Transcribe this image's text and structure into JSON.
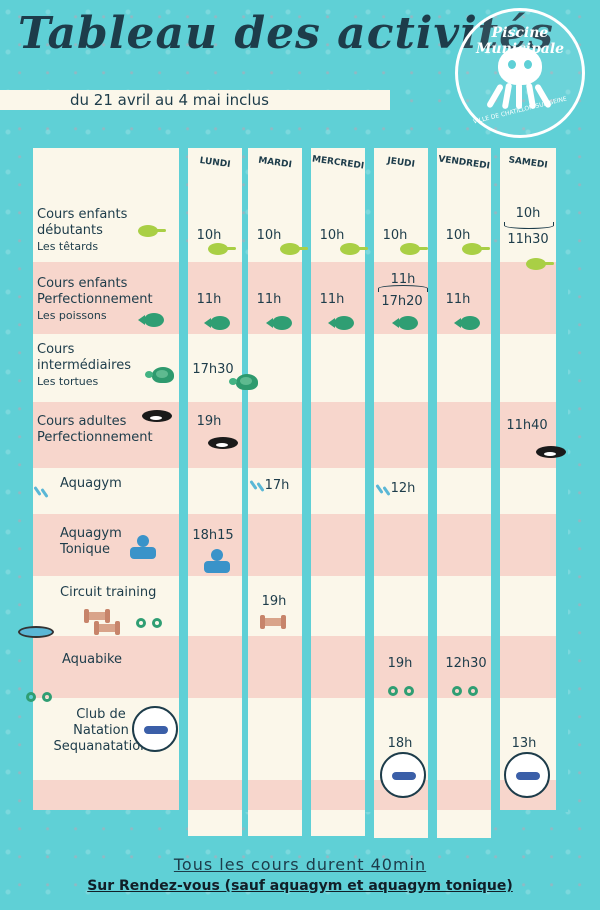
{
  "title": "Tableau des activités",
  "date_range": "du 21 avril au 4 mai inclus",
  "logo": {
    "name": "Piscine Municipale",
    "city": "VILLE DE CHATILLON-SUR-SEINE"
  },
  "days": [
    "LUNDI",
    "MARDI",
    "MERCREDI",
    "JEUDI",
    "VENDREDI",
    "SAMEDI"
  ],
  "activities": [
    {
      "line1": "Cours enfants",
      "line2": "débutants",
      "sub": "Les têtards"
    },
    {
      "line1": "Cours enfants",
      "line2": "Perfectionnement",
      "sub": "Les poissons"
    },
    {
      "line1": "Cours",
      "line2": "intermédiaires",
      "sub": "Les tortues"
    },
    {
      "line1": "Cours adultes",
      "line2": "Perfectionnement"
    },
    {
      "line1": "Aquagym"
    },
    {
      "line1": "Aquagym",
      "line2": "Tonique"
    },
    {
      "line1": "Circuit training"
    },
    {
      "line1": "Aquabike"
    },
    {
      "line1": "Club de",
      "line2": "Natation",
      "line3": "Sequanatation"
    }
  ],
  "times": {
    "r1": {
      "lundi": "10h",
      "mardi": "10h",
      "mercredi": "10h",
      "jeudi": "10h",
      "vendredi": "10h",
      "samedi_a": "10h",
      "samedi_b": "11h30"
    },
    "r2": {
      "lundi": "11h",
      "mardi": "11h",
      "mercredi": "11h",
      "jeudi_a": "11h",
      "jeudi_b": "17h20",
      "vendredi": "11h"
    },
    "r3": {
      "lundi": "17h30"
    },
    "r4": {
      "lundi": "19h",
      "samedi": "11h40"
    },
    "r5": {
      "mardi": "17h",
      "jeudi": "12h"
    },
    "r6": {
      "lundi": "18h15"
    },
    "r7": {
      "mardi": "19h"
    },
    "r8": {
      "jeudi": "19h",
      "vendredi": "12h30"
    },
    "r9": {
      "jeudi": "18h",
      "samedi": "13h"
    }
  },
  "footer": {
    "line1": "Tous les cours durent 40min",
    "line2": "Sur Rendez-vous (sauf aquagym et aquagym tonique)"
  }
}
